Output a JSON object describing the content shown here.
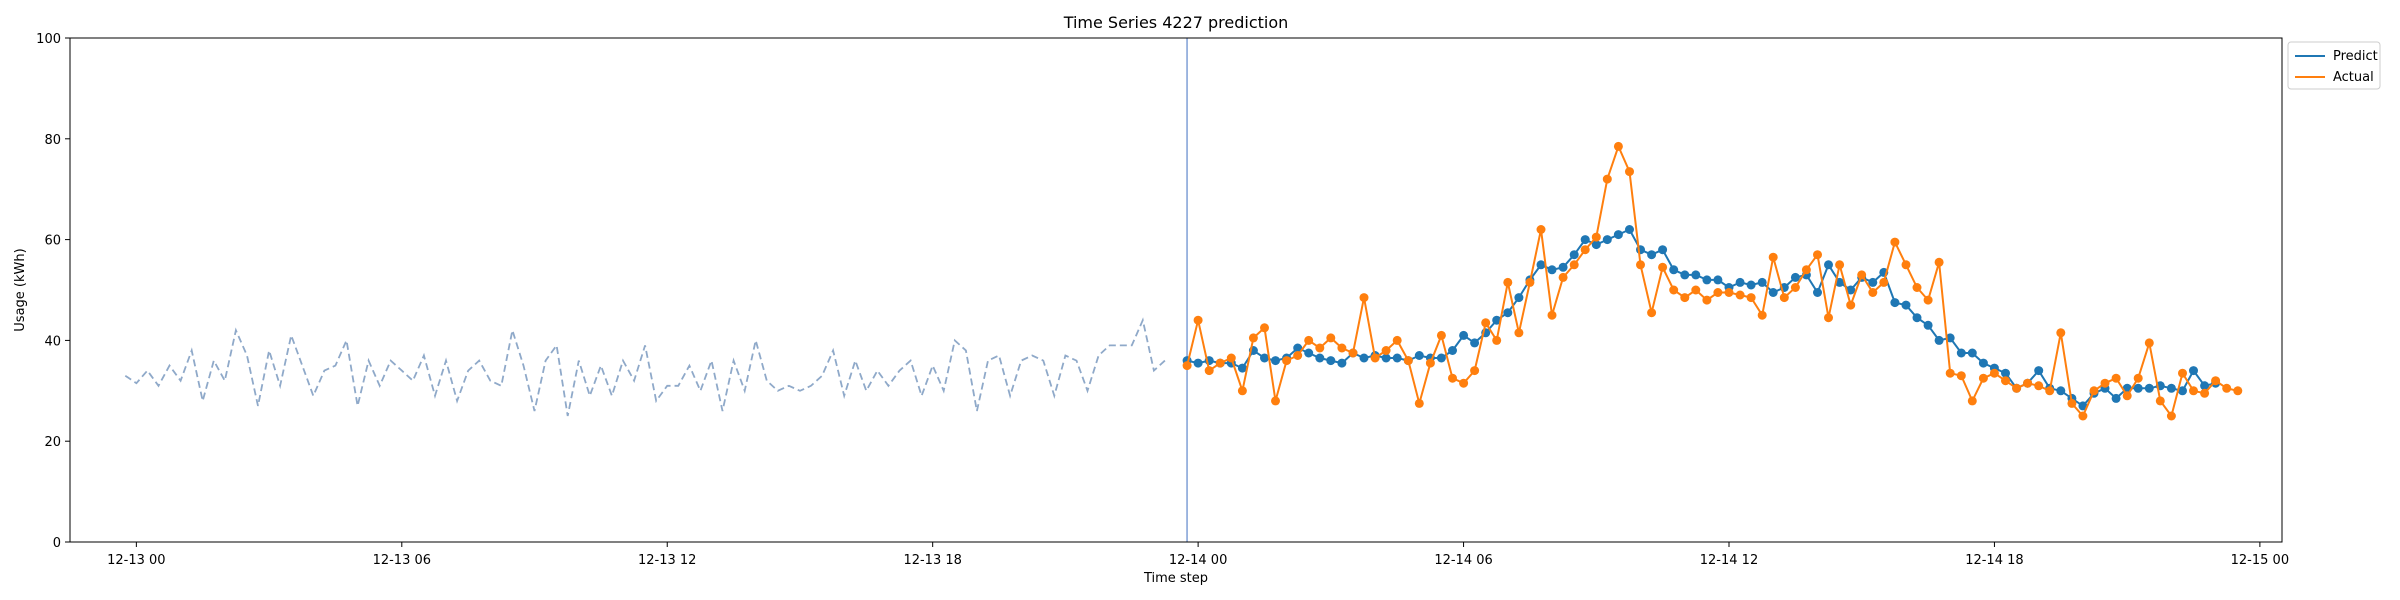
{
  "chart_data": {
    "type": "line",
    "title": "Time Series 4227 prediction",
    "xlabel": "Time step",
    "ylabel": "Usage (kWh)",
    "ylim": [
      0,
      100
    ],
    "yticks": [
      0,
      20,
      40,
      60,
      80,
      100
    ],
    "xlim": [
      "2024-12-12 22:30",
      "2024-12-15 00:30"
    ],
    "xticks": [
      {
        "label": "12-13 00",
        "x": "2024-12-13 00:00"
      },
      {
        "label": "12-13 06",
        "x": "2024-12-13 06:00"
      },
      {
        "label": "12-13 12",
        "x": "2024-12-13 12:00"
      },
      {
        "label": "12-13 18",
        "x": "2024-12-13 18:00"
      },
      {
        "label": "12-14 00",
        "x": "2024-12-14 00:00"
      },
      {
        "label": "12-14 06",
        "x": "2024-12-14 06:00"
      },
      {
        "label": "12-14 12",
        "x": "2024-12-14 12:00"
      },
      {
        "label": "12-14 18",
        "x": "2024-12-14 18:00"
      },
      {
        "label": "12-15 00",
        "x": "2024-12-15 00:00"
      }
    ],
    "grid": false,
    "legend": {
      "position": "top-right outside",
      "entries": [
        "Predict",
        "Actual"
      ]
    },
    "forecast_start": "2024-12-13 23:45",
    "step_minutes": 15,
    "series": [
      {
        "name": "",
        "style": "dashed",
        "color": "#8fa9c9",
        "x_start": "2024-12-12 23:45",
        "values": [
          33,
          31.5,
          34,
          31,
          35,
          32,
          38,
          28,
          36,
          32,
          42,
          37,
          27,
          38,
          31,
          41,
          35,
          29,
          34,
          35,
          40,
          27,
          36,
          31,
          36,
          34,
          32,
          37,
          29,
          36,
          28,
          34,
          36,
          32,
          31,
          42,
          35,
          26,
          36,
          39,
          25,
          36,
          29,
          35,
          29,
          36,
          32,
          39,
          28,
          31,
          31,
          35,
          30,
          36,
          26,
          36,
          30,
          40,
          32,
          30,
          31,
          30,
          31,
          33,
          38,
          29,
          36,
          30,
          34,
          31,
          34,
          36,
          29,
          35,
          30,
          40,
          38,
          26,
          36,
          37,
          29,
          36,
          37,
          36,
          29,
          37,
          36,
          30,
          37,
          39,
          39,
          39,
          44,
          34,
          36
        ]
      },
      {
        "name": "Predict",
        "style": "solid-markers",
        "color": "#1f77b4",
        "x_start": "2024-12-13 23:45",
        "values": [
          36,
          35.5,
          36,
          35.5,
          35.5,
          34.5,
          38,
          36.5,
          36,
          36.5,
          38.5,
          37.5,
          36.5,
          36,
          35.5,
          37.5,
          36.5,
          37,
          36.5,
          36.5,
          36,
          37,
          36.5,
          36.5,
          38,
          41,
          39.5,
          41.5,
          44,
          45.5,
          48.5,
          52,
          55,
          54,
          54.5,
          57,
          60,
          59,
          60,
          61,
          62,
          58,
          57,
          58,
          54,
          53,
          53,
          52,
          52,
          50.5,
          51.5,
          51,
          51.5,
          49.5,
          50.5,
          52.5,
          53,
          49.5,
          55,
          51.5,
          50,
          52.5,
          51.5,
          53.5,
          47.5,
          47,
          44.5,
          43,
          40,
          40.5,
          37.5,
          37.5,
          35.5,
          34.5,
          33.5,
          30.5,
          31.5,
          34,
          30.5,
          30,
          28.5,
          27,
          29.5,
          30.5,
          28.5,
          30.5,
          30.5,
          30.5,
          31,
          30.5,
          30,
          34,
          31,
          31.5
        ]
      },
      {
        "name": "Actual",
        "style": "solid-markers",
        "color": "#ff7f0e",
        "x_start": "2024-12-13 23:45",
        "values": [
          35,
          44,
          34,
          35.5,
          36.5,
          30,
          40.5,
          42.5,
          28,
          36,
          37,
          40,
          38.5,
          40.5,
          38.5,
          37.5,
          48.5,
          36.5,
          38,
          40,
          36,
          27.5,
          35.5,
          41,
          32.5,
          31.5,
          34,
          43.5,
          40,
          51.5,
          41.5,
          51.5,
          62,
          45,
          52.5,
          55,
          58,
          60.5,
          72,
          78.5,
          73.5,
          55,
          45.5,
          54.5,
          50,
          48.5,
          50,
          48,
          49.5,
          49.5,
          49,
          48.5,
          45,
          56.5,
          48.5,
          50.5,
          54,
          57,
          44.5,
          55,
          47,
          53,
          49.5,
          51.5,
          59.5,
          55,
          50.5,
          48,
          55.5,
          33.5,
          33,
          28,
          32.5,
          33.5,
          32,
          30.5,
          31.5,
          31,
          30,
          41.5,
          27.5,
          25,
          30,
          31.5,
          32.5,
          29,
          32.5,
          39.5,
          28,
          25,
          33.5,
          30,
          29.5,
          32,
          30.5,
          30
        ]
      }
    ]
  }
}
